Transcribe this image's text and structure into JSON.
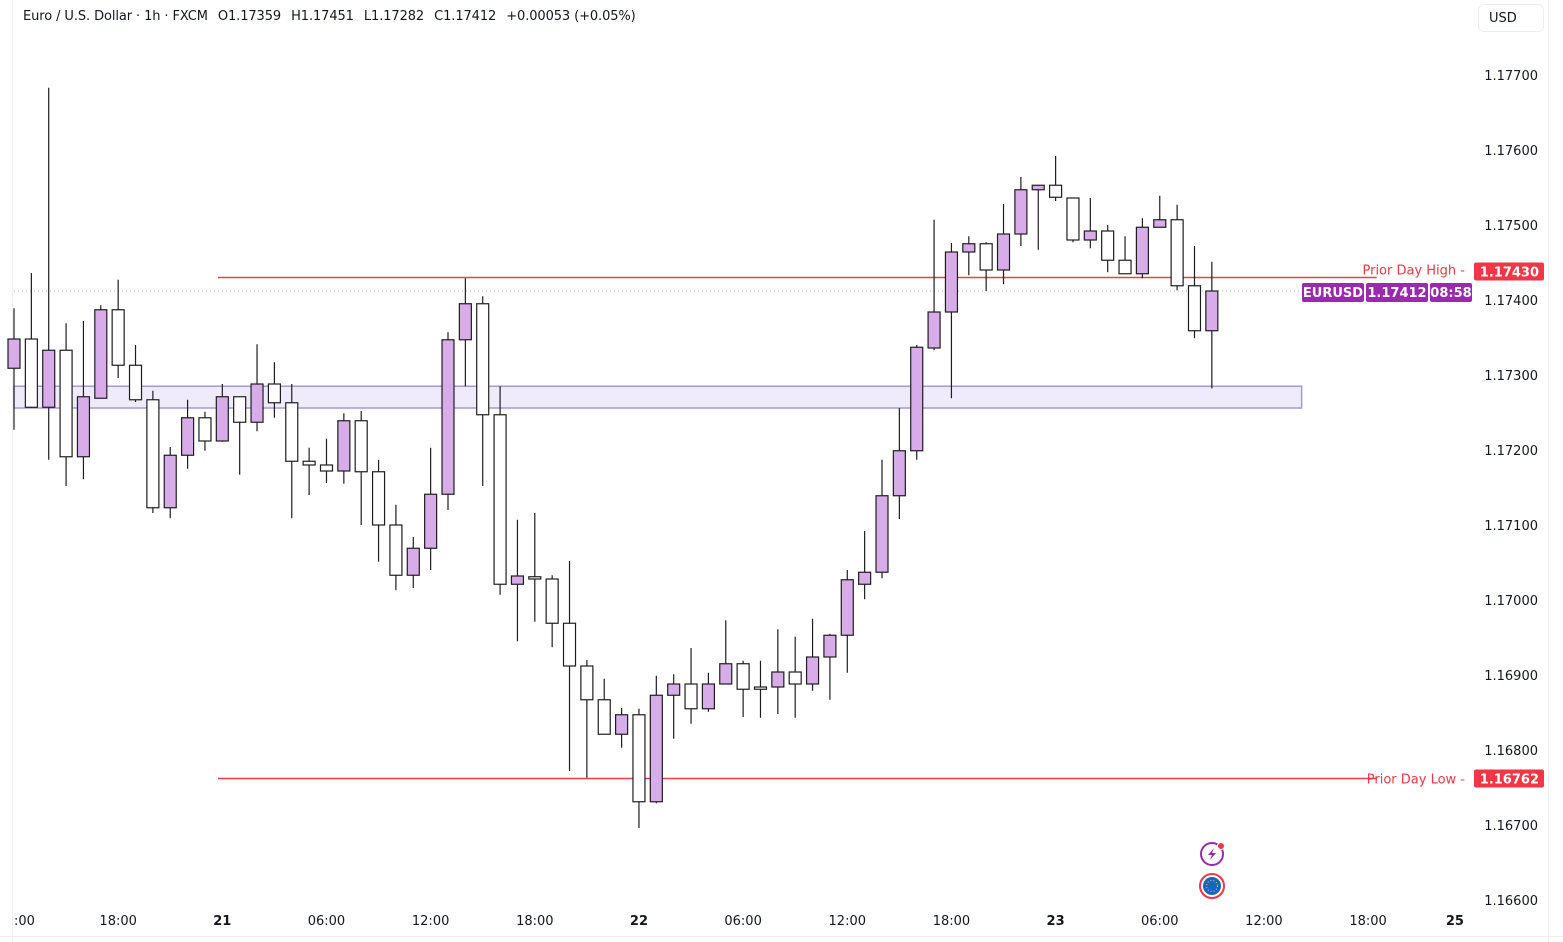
{
  "header": {
    "symbol": "Euro / U.S. Dollar · 1h · FXCM",
    "open": "O1.17359",
    "high": "H1.17451",
    "low": "L1.17282",
    "close": "C1.17412",
    "change": "+0.00053 (+0.05%)"
  },
  "currency_button": "USD",
  "colors": {
    "up_fill": "#d7ace9",
    "down_fill": "#ffffff",
    "outline": "#1e1e1e",
    "level_line": "#e8404f",
    "tag_red": "#f23645",
    "tag_purple": "#9c27b0",
    "zone_fill": "#ece6fa",
    "zone_stroke": "#a59ad8"
  },
  "icons": [
    "lightning-alert-icon",
    "eu-flag-icon"
  ],
  "chart_data": {
    "type": "candlestick",
    "title": "Euro / U.S. Dollar · 1h · FXCM",
    "price_scale": {
      "min": 1.166,
      "max": 1.177,
      "step": 0.001
    },
    "y_ticks": [
      "1.17700",
      "1.17600",
      "1.17500",
      "1.17400",
      "1.17300",
      "1.17200",
      "1.17100",
      "1.17000",
      "1.16900",
      "1.16800",
      "1.16700",
      "1.16600"
    ],
    "x_ticks": [
      {
        "bar": 0,
        "label": ":00",
        "bold": false
      },
      {
        "bar": 6,
        "label": "18:00",
        "bold": false
      },
      {
        "bar": 12,
        "label": "21",
        "bold": true
      },
      {
        "bar": 18,
        "label": "06:00",
        "bold": false
      },
      {
        "bar": 24,
        "label": "12:00",
        "bold": false
      },
      {
        "bar": 30,
        "label": "18:00",
        "bold": false
      },
      {
        "bar": 36,
        "label": "22",
        "bold": true
      },
      {
        "bar": 42,
        "label": "06:00",
        "bold": false
      },
      {
        "bar": 48,
        "label": "12:00",
        "bold": false
      },
      {
        "bar": 54,
        "label": "18:00",
        "bold": false
      },
      {
        "bar": 60,
        "label": "23",
        "bold": true
      },
      {
        "bar": 66,
        "label": "06:00",
        "bold": false
      },
      {
        "bar": 72,
        "label": "12:00",
        "bold": false
      },
      {
        "bar": 78,
        "label": "18:00",
        "bold": false
      },
      {
        "bar": 83,
        "label": "25",
        "bold": true
      }
    ],
    "candles_ohlc": [
      [
        1.17309,
        1.17389,
        1.17227,
        1.17348
      ],
      [
        1.17348,
        1.17436,
        1.17256,
        1.17257
      ],
      [
        1.17257,
        1.17683,
        1.17187,
        1.17333
      ],
      [
        1.17333,
        1.17369,
        1.17152,
        1.17191
      ],
      [
        1.17191,
        1.17372,
        1.17161,
        1.17271
      ],
      [
        1.17269,
        1.17393,
        1.17269,
        1.17387
      ],
      [
        1.17387,
        1.17427,
        1.17296,
        1.17313
      ],
      [
        1.17313,
        1.1734,
        1.17264,
        1.17267
      ],
      [
        1.17267,
        1.17279,
        1.17116,
        1.17123
      ],
      [
        1.17123,
        1.17204,
        1.17109,
        1.17193
      ],
      [
        1.17193,
        1.17267,
        1.17175,
        1.17243
      ],
      [
        1.17243,
        1.17251,
        1.17199,
        1.17212
      ],
      [
        1.17212,
        1.17288,
        1.17211,
        1.17271
      ],
      [
        1.17271,
        1.17271,
        1.17167,
        1.17237
      ],
      [
        1.17237,
        1.17341,
        1.17225,
        1.17288
      ],
      [
        1.17288,
        1.17317,
        1.17243,
        1.17263
      ],
      [
        1.17263,
        1.17288,
        1.17109,
        1.17185
      ],
      [
        1.17185,
        1.17203,
        1.1714,
        1.1718
      ],
      [
        1.1718,
        1.17215,
        1.17156,
        1.17172
      ],
      [
        1.17172,
        1.17249,
        1.17155,
        1.17239
      ],
      [
        1.17239,
        1.17252,
        1.171,
        1.17171
      ],
      [
        1.17171,
        1.17187,
        1.17051,
        1.171
      ],
      [
        1.171,
        1.17127,
        1.17013,
        1.17033
      ],
      [
        1.17033,
        1.17084,
        1.17016,
        1.17069
      ],
      [
        1.17069,
        1.17203,
        1.1704,
        1.17141
      ],
      [
        1.17141,
        1.17357,
        1.1712,
        1.17347
      ],
      [
        1.17347,
        1.17429,
        1.17285,
        1.17395
      ],
      [
        1.17395,
        1.17405,
        1.17152,
        1.17247
      ],
      [
        1.17247,
        1.17285,
        1.17007,
        1.17021
      ],
      [
        1.17021,
        1.17107,
        1.16945,
        1.17032
      ],
      [
        1.17031,
        1.17116,
        1.16971,
        1.17028
      ],
      [
        1.17028,
        1.17033,
        1.16937,
        1.16969
      ],
      [
        1.16969,
        1.17052,
        1.16772,
        1.16912
      ],
      [
        1.16912,
        1.1692,
        1.16763,
        1.16867
      ],
      [
        1.16867,
        1.16895,
        1.16821,
        1.16821
      ],
      [
        1.16821,
        1.16856,
        1.16803,
        1.16847
      ],
      [
        1.16847,
        1.16855,
        1.16696,
        1.16731
      ],
      [
        1.16731,
        1.16899,
        1.16729,
        1.16873
      ],
      [
        1.16873,
        1.16901,
        1.16815,
        1.16888
      ],
      [
        1.16888,
        1.16936,
        1.16835,
        1.16855
      ],
      [
        1.16855,
        1.16903,
        1.16851,
        1.16888
      ],
      [
        1.16888,
        1.16973,
        1.16888,
        1.16915
      ],
      [
        1.16915,
        1.16919,
        1.16844,
        1.16881
      ],
      [
        1.16884,
        1.16919,
        1.16843,
        1.16881
      ],
      [
        1.16884,
        1.16961,
        1.16848,
        1.16904
      ],
      [
        1.16904,
        1.16951,
        1.16843,
        1.16888
      ],
      [
        1.16888,
        1.16975,
        1.16879,
        1.16924
      ],
      [
        1.16924,
        1.16955,
        1.16867,
        1.16953
      ],
      [
        1.16953,
        1.1704,
        1.16903,
        1.17027
      ],
      [
        1.17021,
        1.17092,
        1.17001,
        1.17037
      ],
      [
        1.17037,
        1.17187,
        1.17029,
        1.17139
      ],
      [
        1.17139,
        1.17256,
        1.17108,
        1.17199
      ],
      [
        1.17199,
        1.1734,
        1.17187,
        1.17337
      ],
      [
        1.17336,
        1.17507,
        1.17333,
        1.17384
      ],
      [
        1.17384,
        1.17476,
        1.17269,
        1.17464
      ],
      [
        1.17464,
        1.17485,
        1.17433,
        1.17475
      ],
      [
        1.17475,
        1.17477,
        1.17412,
        1.1744
      ],
      [
        1.1744,
        1.17528,
        1.17421,
        1.17488
      ],
      [
        1.17488,
        1.17564,
        1.17472,
        1.17547
      ],
      [
        1.17547,
        1.17553,
        1.17467,
        1.17553
      ],
      [
        1.17553,
        1.17592,
        1.17532,
        1.17537
      ],
      [
        1.17536,
        1.17536,
        1.17477,
        1.1748
      ],
      [
        1.1748,
        1.17536,
        1.17469,
        1.17492
      ],
      [
        1.17492,
        1.175,
        1.17437,
        1.17453
      ],
      [
        1.17453,
        1.17485,
        1.17435,
        1.17435
      ],
      [
        1.17435,
        1.17509,
        1.17429,
        1.17497
      ],
      [
        1.17497,
        1.17539,
        1.17497,
        1.17507
      ],
      [
        1.17507,
        1.17527,
        1.17413,
        1.17419
      ],
      [
        1.17419,
        1.17472,
        1.17349,
        1.17359
      ],
      [
        1.17359,
        1.17451,
        1.17282,
        1.17412
      ]
    ],
    "zone": {
      "from_bar": 0,
      "to_bar": 74,
      "top": 1.17285,
      "bottom": 1.17256
    },
    "levels": [
      {
        "name": "Prior Day High",
        "label": "Prior Day High -",
        "price": 1.1743,
        "price_label": "1.17430",
        "from_bar": 11,
        "to_bar": 78.5
      },
      {
        "name": "Prior Day Low",
        "label": "Prior Day Low -",
        "price": 1.16762,
        "price_label": "1.16762",
        "from_bar": 11,
        "to_bar": 78.5
      }
    ],
    "last_price": {
      "symbol": "EURUSD",
      "price": 1.17412,
      "price_label": "1.17412",
      "countdown": "08:58"
    }
  }
}
